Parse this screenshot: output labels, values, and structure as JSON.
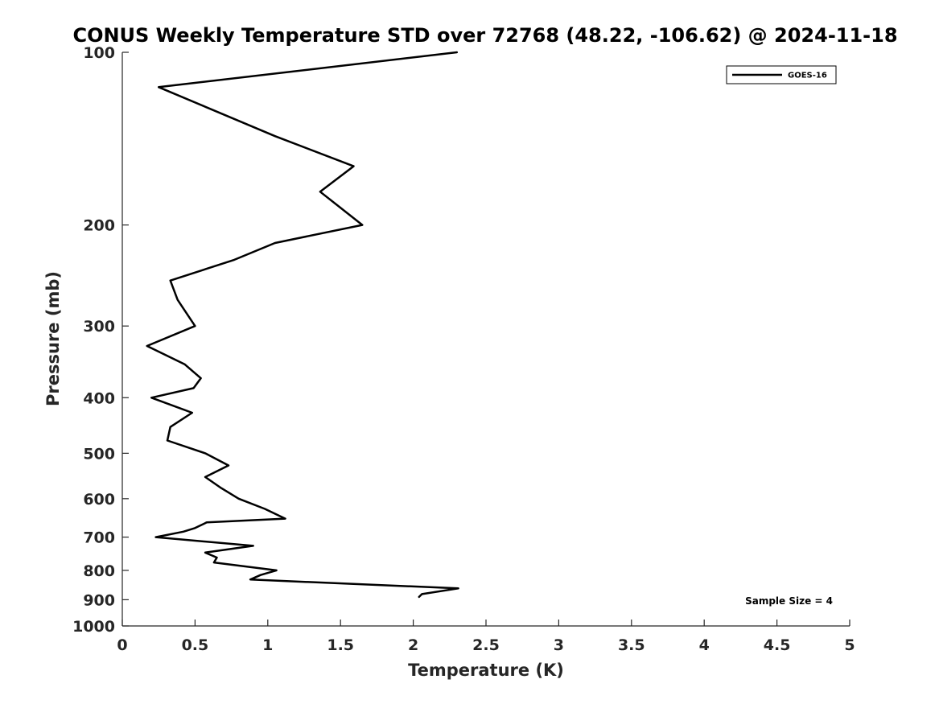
{
  "chart_data": {
    "type": "line",
    "title": "CONUS Weekly Temperature STD over 72768 (48.22, -106.62) @ 2024-11-18",
    "xlabel": "Temperature (K)",
    "ylabel": "Pressure (mb)",
    "xlim": [
      0,
      5
    ],
    "ylim": [
      1000,
      100
    ],
    "y_scale": "log",
    "y_reversed": true,
    "grid": false,
    "legend_position": "top-right",
    "x_ticks": [
      "0",
      "0.5",
      "1",
      "1.5",
      "2",
      "2.5",
      "3",
      "3.5",
      "4",
      "4.5",
      "5"
    ],
    "y_ticks": [
      "100",
      "200",
      "300",
      "400",
      "500",
      "600",
      "700",
      "800",
      "900",
      "1000"
    ],
    "series": [
      {
        "name": "GOES-16",
        "color": "#000000",
        "points": [
          {
            "t": 2.3,
            "p": 100
          },
          {
            "t": 0.25,
            "p": 115
          },
          {
            "t": 1.05,
            "p": 140
          },
          {
            "t": 1.59,
            "p": 158
          },
          {
            "t": 1.36,
            "p": 175
          },
          {
            "t": 1.65,
            "p": 200
          },
          {
            "t": 1.05,
            "p": 215
          },
          {
            "t": 0.77,
            "p": 230
          },
          {
            "t": 0.33,
            "p": 250
          },
          {
            "t": 0.38,
            "p": 270
          },
          {
            "t": 0.5,
            "p": 300
          },
          {
            "t": 0.17,
            "p": 325
          },
          {
            "t": 0.43,
            "p": 350
          },
          {
            "t": 0.54,
            "p": 370
          },
          {
            "t": 0.49,
            "p": 385
          },
          {
            "t": 0.2,
            "p": 400
          },
          {
            "t": 0.48,
            "p": 425
          },
          {
            "t": 0.33,
            "p": 450
          },
          {
            "t": 0.31,
            "p": 475
          },
          {
            "t": 0.57,
            "p": 500
          },
          {
            "t": 0.73,
            "p": 525
          },
          {
            "t": 0.57,
            "p": 550
          },
          {
            "t": 0.68,
            "p": 575
          },
          {
            "t": 0.8,
            "p": 600
          },
          {
            "t": 0.98,
            "p": 625
          },
          {
            "t": 1.12,
            "p": 650
          },
          {
            "t": 0.58,
            "p": 660
          },
          {
            "t": 0.5,
            "p": 675
          },
          {
            "t": 0.42,
            "p": 685
          },
          {
            "t": 0.23,
            "p": 700
          },
          {
            "t": 0.9,
            "p": 725
          },
          {
            "t": 0.57,
            "p": 745
          },
          {
            "t": 0.65,
            "p": 760
          },
          {
            "t": 0.63,
            "p": 775
          },
          {
            "t": 1.06,
            "p": 800
          },
          {
            "t": 0.95,
            "p": 815
          },
          {
            "t": 0.88,
            "p": 830
          },
          {
            "t": 2.31,
            "p": 860
          },
          {
            "t": 2.06,
            "p": 880
          },
          {
            "t": 2.04,
            "p": 890
          }
        ]
      }
    ],
    "annotation": "Sample Size = 4"
  }
}
